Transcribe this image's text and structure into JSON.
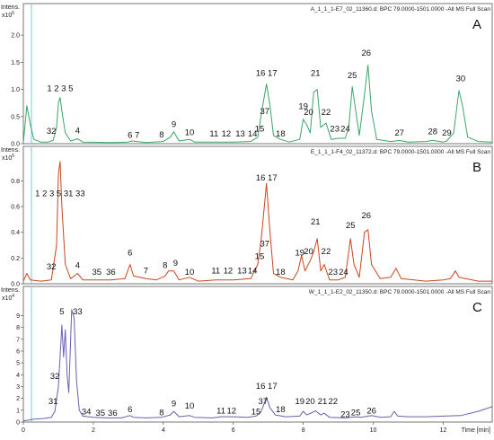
{
  "chart_data": [
    {
      "type": "line",
      "panel_letter": "A",
      "header": "A_1_1_1-E7_02_11360.d: BPC 79.0000-1501.0000 -All MS Full Scan",
      "y_title": "Intens.",
      "y_exponent": "x10^5",
      "y_ticks": [
        "0.0",
        "0.5",
        "1.0",
        "1.5",
        "2.0"
      ],
      "ylim": [
        0,
        2.35
      ],
      "xlim": [
        0,
        13.4
      ],
      "color": "#3aa56a",
      "peak_labels": [
        {
          "text": "32",
          "x": 0.8,
          "y": 0.13
        },
        {
          "text": "1 2 3 5",
          "x": 1.05,
          "y": 0.92
        },
        {
          "text": "4",
          "x": 1.55,
          "y": 0.14
        },
        {
          "text": "6",
          "x": 3.05,
          "y": 0.06
        },
        {
          "text": "7",
          "x": 3.25,
          "y": 0.06
        },
        {
          "text": "8",
          "x": 3.95,
          "y": 0.07
        },
        {
          "text": "9",
          "x": 4.3,
          "y": 0.26
        },
        {
          "text": "10",
          "x": 4.75,
          "y": 0.11
        },
        {
          "text": "11",
          "x": 5.45,
          "y": 0.08
        },
        {
          "text": "12",
          "x": 5.8,
          "y": 0.08
        },
        {
          "text": "13",
          "x": 6.2,
          "y": 0.08
        },
        {
          "text": "14",
          "x": 6.55,
          "y": 0.08
        },
        {
          "text": "15",
          "x": 6.75,
          "y": 0.17
        },
        {
          "text": "16 17",
          "x": 6.95,
          "y": 1.2
        },
        {
          "text": "37",
          "x": 6.9,
          "y": 0.5
        },
        {
          "text": "18",
          "x": 7.35,
          "y": 0.08
        },
        {
          "text": "19",
          "x": 8.0,
          "y": 0.59
        },
        {
          "text": "20",
          "x": 8.15,
          "y": 0.48
        },
        {
          "text": "21",
          "x": 8.35,
          "y": 1.2
        },
        {
          "text": "22",
          "x": 8.65,
          "y": 0.48
        },
        {
          "text": "23",
          "x": 8.9,
          "y": 0.17
        },
        {
          "text": "24",
          "x": 9.2,
          "y": 0.17
        },
        {
          "text": "25",
          "x": 9.4,
          "y": 1.16
        },
        {
          "text": "26",
          "x": 9.8,
          "y": 1.57
        },
        {
          "text": "27",
          "x": 10.75,
          "y": 0.1
        },
        {
          "text": "28",
          "x": 11.7,
          "y": 0.12
        },
        {
          "text": "29",
          "x": 12.1,
          "y": 0.1
        },
        {
          "text": "30",
          "x": 12.5,
          "y": 1.1
        }
      ],
      "points": [
        [
          0,
          0.02
        ],
        [
          0.1,
          0.7
        ],
        [
          0.2,
          0.35
        ],
        [
          0.3,
          0.08
        ],
        [
          0.5,
          0.03
        ],
        [
          0.7,
          0.03
        ],
        [
          0.85,
          0.06
        ],
        [
          0.95,
          0.3
        ],
        [
          1.0,
          0.75
        ],
        [
          1.05,
          0.85
        ],
        [
          1.1,
          0.6
        ],
        [
          1.2,
          0.2
        ],
        [
          1.35,
          0.05
        ],
        [
          1.55,
          0.09
        ],
        [
          1.7,
          0.03
        ],
        [
          2.5,
          0.02
        ],
        [
          3.0,
          0.03
        ],
        [
          3.1,
          0.05
        ],
        [
          3.25,
          0.04
        ],
        [
          3.5,
          0.02
        ],
        [
          4.0,
          0.04
        ],
        [
          4.2,
          0.12
        ],
        [
          4.3,
          0.22
        ],
        [
          4.45,
          0.05
        ],
        [
          4.75,
          0.08
        ],
        [
          4.9,
          0.03
        ],
        [
          5.5,
          0.03
        ],
        [
          6.0,
          0.03
        ],
        [
          6.5,
          0.04
        ],
        [
          6.7,
          0.12
        ],
        [
          6.8,
          0.55
        ],
        [
          6.95,
          1.1
        ],
        [
          7.05,
          0.7
        ],
        [
          7.15,
          0.15
        ],
        [
          7.35,
          0.08
        ],
        [
          7.6,
          0.03
        ],
        [
          7.9,
          0.08
        ],
        [
          8.0,
          0.45
        ],
        [
          8.1,
          0.35
        ],
        [
          8.2,
          0.2
        ],
        [
          8.3,
          0.95
        ],
        [
          8.4,
          1.0
        ],
        [
          8.5,
          0.3
        ],
        [
          8.65,
          0.38
        ],
        [
          8.8,
          0.08
        ],
        [
          9.0,
          0.1
        ],
        [
          9.2,
          0.1
        ],
        [
          9.3,
          0.3
        ],
        [
          9.4,
          1.05
        ],
        [
          9.5,
          0.6
        ],
        [
          9.6,
          0.15
        ],
        [
          9.75,
          0.9
        ],
        [
          9.85,
          1.45
        ],
        [
          9.95,
          0.6
        ],
        [
          10.1,
          0.08
        ],
        [
          10.5,
          0.04
        ],
        [
          10.75,
          0.06
        ],
        [
          11.0,
          0.03
        ],
        [
          11.5,
          0.04
        ],
        [
          11.7,
          0.06
        ],
        [
          12.0,
          0.03
        ],
        [
          12.1,
          0.05
        ],
        [
          12.3,
          0.2
        ],
        [
          12.45,
          0.98
        ],
        [
          12.55,
          0.7
        ],
        [
          12.7,
          0.12
        ],
        [
          13.0,
          0.04
        ],
        [
          13.4,
          0.03
        ]
      ]
    },
    {
      "type": "line",
      "panel_letter": "B",
      "header": "E_1_1_1-F4_02_11372.d: BPC 79.0000-1501.0000 -All MS Full Scan",
      "y_title": "Intens.",
      "y_exponent": "x10^5",
      "y_ticks": [
        "0.0",
        "0.2",
        "0.4",
        "0.6",
        "0.8"
      ],
      "ylim": [
        0,
        0.97
      ],
      "xlim": [
        0,
        13.4
      ],
      "color": "#c8471d",
      "peak_labels": [
        {
          "text": "1 2 3 5 31 33",
          "x": 1.05,
          "y": 0.66
        },
        {
          "text": "32",
          "x": 0.8,
          "y": 0.09
        },
        {
          "text": "4",
          "x": 1.55,
          "y": 0.1
        },
        {
          "text": "35",
          "x": 2.1,
          "y": 0.05
        },
        {
          "text": "36",
          "x": 2.5,
          "y": 0.05
        },
        {
          "text": "6",
          "x": 3.05,
          "y": 0.2
        },
        {
          "text": "7",
          "x": 3.5,
          "y": 0.06
        },
        {
          "text": "8",
          "x": 4.05,
          "y": 0.1
        },
        {
          "text": "9",
          "x": 4.35,
          "y": 0.12
        },
        {
          "text": "10",
          "x": 4.75,
          "y": 0.05
        },
        {
          "text": "11",
          "x": 5.5,
          "y": 0.06
        },
        {
          "text": "12",
          "x": 5.85,
          "y": 0.06
        },
        {
          "text": "13",
          "x": 6.25,
          "y": 0.06
        },
        {
          "text": "14",
          "x": 6.55,
          "y": 0.06
        },
        {
          "text": "15",
          "x": 6.75,
          "y": 0.17
        },
        {
          "text": "16 17",
          "x": 6.95,
          "y": 0.78
        },
        {
          "text": "37",
          "x": 6.9,
          "y": 0.27
        },
        {
          "text": "18",
          "x": 7.35,
          "y": 0.05
        },
        {
          "text": "19",
          "x": 7.9,
          "y": 0.2
        },
        {
          "text": "20",
          "x": 8.15,
          "y": 0.21
        },
        {
          "text": "21",
          "x": 8.35,
          "y": 0.44
        },
        {
          "text": "22",
          "x": 8.65,
          "y": 0.21
        },
        {
          "text": "23",
          "x": 8.85,
          "y": 0.05
        },
        {
          "text": "24",
          "x": 9.15,
          "y": 0.05
        },
        {
          "text": "25",
          "x": 9.35,
          "y": 0.41
        },
        {
          "text": "26",
          "x": 9.8,
          "y": 0.49
        }
      ],
      "points": [
        [
          0,
          0.02
        ],
        [
          0.1,
          0.08
        ],
        [
          0.2,
          0.03
        ],
        [
          0.5,
          0.02
        ],
        [
          0.8,
          0.03
        ],
        [
          0.95,
          0.3
        ],
        [
          1.0,
          0.85
        ],
        [
          1.05,
          0.95
        ],
        [
          1.1,
          0.6
        ],
        [
          1.2,
          0.15
        ],
        [
          1.35,
          0.04
        ],
        [
          1.55,
          0.08
        ],
        [
          1.7,
          0.03
        ],
        [
          2.1,
          0.03
        ],
        [
          2.5,
          0.03
        ],
        [
          2.9,
          0.04
        ],
        [
          3.05,
          0.15
        ],
        [
          3.15,
          0.06
        ],
        [
          3.5,
          0.04
        ],
        [
          3.8,
          0.03
        ],
        [
          4.05,
          0.06
        ],
        [
          4.15,
          0.1
        ],
        [
          4.3,
          0.1
        ],
        [
          4.45,
          0.03
        ],
        [
          4.75,
          0.05
        ],
        [
          5.0,
          0.02
        ],
        [
          5.5,
          0.03
        ],
        [
          6.0,
          0.03
        ],
        [
          6.5,
          0.04
        ],
        [
          6.7,
          0.15
        ],
        [
          6.8,
          0.35
        ],
        [
          6.95,
          0.78
        ],
        [
          7.05,
          0.4
        ],
        [
          7.15,
          0.08
        ],
        [
          7.35,
          0.05
        ],
        [
          7.7,
          0.03
        ],
        [
          7.85,
          0.1
        ],
        [
          7.95,
          0.22
        ],
        [
          8.05,
          0.1
        ],
        [
          8.2,
          0.18
        ],
        [
          8.3,
          0.25
        ],
        [
          8.4,
          0.35
        ],
        [
          8.5,
          0.1
        ],
        [
          8.6,
          0.15
        ],
        [
          8.75,
          0.03
        ],
        [
          9.0,
          0.03
        ],
        [
          9.2,
          0.05
        ],
        [
          9.35,
          0.35
        ],
        [
          9.45,
          0.15
        ],
        [
          9.6,
          0.05
        ],
        [
          9.75,
          0.4
        ],
        [
          9.85,
          0.42
        ],
        [
          9.95,
          0.15
        ],
        [
          10.2,
          0.04
        ],
        [
          10.5,
          0.05
        ],
        [
          10.65,
          0.12
        ],
        [
          10.8,
          0.04
        ],
        [
          11.5,
          0.02
        ],
        [
          12.0,
          0.03
        ],
        [
          12.2,
          0.04
        ],
        [
          12.35,
          0.1
        ],
        [
          12.45,
          0.05
        ],
        [
          13.0,
          0.02
        ],
        [
          13.4,
          0.02
        ]
      ]
    },
    {
      "type": "line",
      "panel_letter": "C",
      "header": "W_1_1_1-E2_02_11350.d: BPC 79.0000-1501.0000 -All MS Full Scan",
      "y_title": "Intens.",
      "y_exponent": "x10^4",
      "y_ticks": [
        "0",
        "1",
        "2",
        "3",
        "4",
        "5",
        "6",
        "7",
        "8",
        "9"
      ],
      "ylim": [
        0,
        10.4
      ],
      "xlim": [
        0,
        13.4
      ],
      "color": "#6a5fae",
      "peak_labels": [
        {
          "text": "5",
          "x": 1.1,
          "y": 8.9
        },
        {
          "text": "33",
          "x": 1.55,
          "y": 8.9
        },
        {
          "text": "32",
          "x": 0.9,
          "y": 3.4
        },
        {
          "text": "31",
          "x": 0.85,
          "y": 1.3
        },
        {
          "text": "34",
          "x": 1.8,
          "y": 0.4
        },
        {
          "text": "35",
          "x": 2.2,
          "y": 0.3
        },
        {
          "text": "36",
          "x": 2.55,
          "y": 0.3
        },
        {
          "text": "6",
          "x": 3.05,
          "y": 0.6
        },
        {
          "text": "8",
          "x": 3.95,
          "y": 0.35
        },
        {
          "text": "9",
          "x": 4.3,
          "y": 1.1
        },
        {
          "text": "10",
          "x": 4.75,
          "y": 0.9
        },
        {
          "text": "11",
          "x": 5.65,
          "y": 0.5
        },
        {
          "text": "12",
          "x": 5.95,
          "y": 0.5
        },
        {
          "text": "15",
          "x": 6.65,
          "y": 0.4
        },
        {
          "text": "16 17",
          "x": 6.95,
          "y": 2.6
        },
        {
          "text": "37",
          "x": 6.85,
          "y": 1.3
        },
        {
          "text": "18",
          "x": 7.35,
          "y": 0.6
        },
        {
          "text": "19",
          "x": 7.9,
          "y": 1.3
        },
        {
          "text": "20",
          "x": 8.2,
          "y": 1.3
        },
        {
          "text": "21",
          "x": 8.55,
          "y": 1.3
        },
        {
          "text": "22",
          "x": 8.85,
          "y": 1.3
        },
        {
          "text": "23",
          "x": 9.2,
          "y": 0.2
        },
        {
          "text": "25",
          "x": 9.5,
          "y": 0.35
        },
        {
          "text": "26",
          "x": 9.95,
          "y": 0.5
        }
      ],
      "points": [
        [
          0,
          0.1
        ],
        [
          0.3,
          0.25
        ],
        [
          0.6,
          0.3
        ],
        [
          0.8,
          0.4
        ],
        [
          0.9,
          0.9
        ],
        [
          1.0,
          3.0
        ],
        [
          1.05,
          5.5
        ],
        [
          1.1,
          8.2
        ],
        [
          1.15,
          5.5
        ],
        [
          1.2,
          7.8
        ],
        [
          1.25,
          4.0
        ],
        [
          1.3,
          2.5
        ],
        [
          1.38,
          9.5
        ],
        [
          1.45,
          8.8
        ],
        [
          1.52,
          3.5
        ],
        [
          1.6,
          1.0
        ],
        [
          1.7,
          0.5
        ],
        [
          2.0,
          0.4
        ],
        [
          2.4,
          0.35
        ],
        [
          2.8,
          0.35
        ],
        [
          3.05,
          0.55
        ],
        [
          3.15,
          0.4
        ],
        [
          3.5,
          0.35
        ],
        [
          3.95,
          0.4
        ],
        [
          4.2,
          0.6
        ],
        [
          4.3,
          0.9
        ],
        [
          4.45,
          0.45
        ],
        [
          4.75,
          0.55
        ],
        [
          4.9,
          0.4
        ],
        [
          5.4,
          0.35
        ],
        [
          5.65,
          0.45
        ],
        [
          6.0,
          0.45
        ],
        [
          6.4,
          0.4
        ],
        [
          6.65,
          0.5
        ],
        [
          6.8,
          0.9
        ],
        [
          6.95,
          2.1
        ],
        [
          7.05,
          1.2
        ],
        [
          7.2,
          0.6
        ],
        [
          7.5,
          0.45
        ],
        [
          7.9,
          0.5
        ],
        [
          8.0,
          0.9
        ],
        [
          8.1,
          0.6
        ],
        [
          8.25,
          0.8
        ],
        [
          8.35,
          0.95
        ],
        [
          8.5,
          0.6
        ],
        [
          8.6,
          0.75
        ],
        [
          8.75,
          0.4
        ],
        [
          9.2,
          0.35
        ],
        [
          9.5,
          0.45
        ],
        [
          9.65,
          0.4
        ],
        [
          9.95,
          0.55
        ],
        [
          10.2,
          0.4
        ],
        [
          10.5,
          0.45
        ],
        [
          10.6,
          0.9
        ],
        [
          10.7,
          0.5
        ],
        [
          11.0,
          0.45
        ],
        [
          11.5,
          0.45
        ],
        [
          12.0,
          0.5
        ],
        [
          12.5,
          0.55
        ],
        [
          13.0,
          0.9
        ],
        [
          13.4,
          1.3
        ]
      ]
    }
  ],
  "x_axis": {
    "ticks": [
      "0",
      "2",
      "4",
      "6",
      "8",
      "10",
      "12"
    ],
    "tick_values": [
      0,
      2,
      4,
      6,
      8,
      10,
      12
    ],
    "title": "Time [min]"
  }
}
